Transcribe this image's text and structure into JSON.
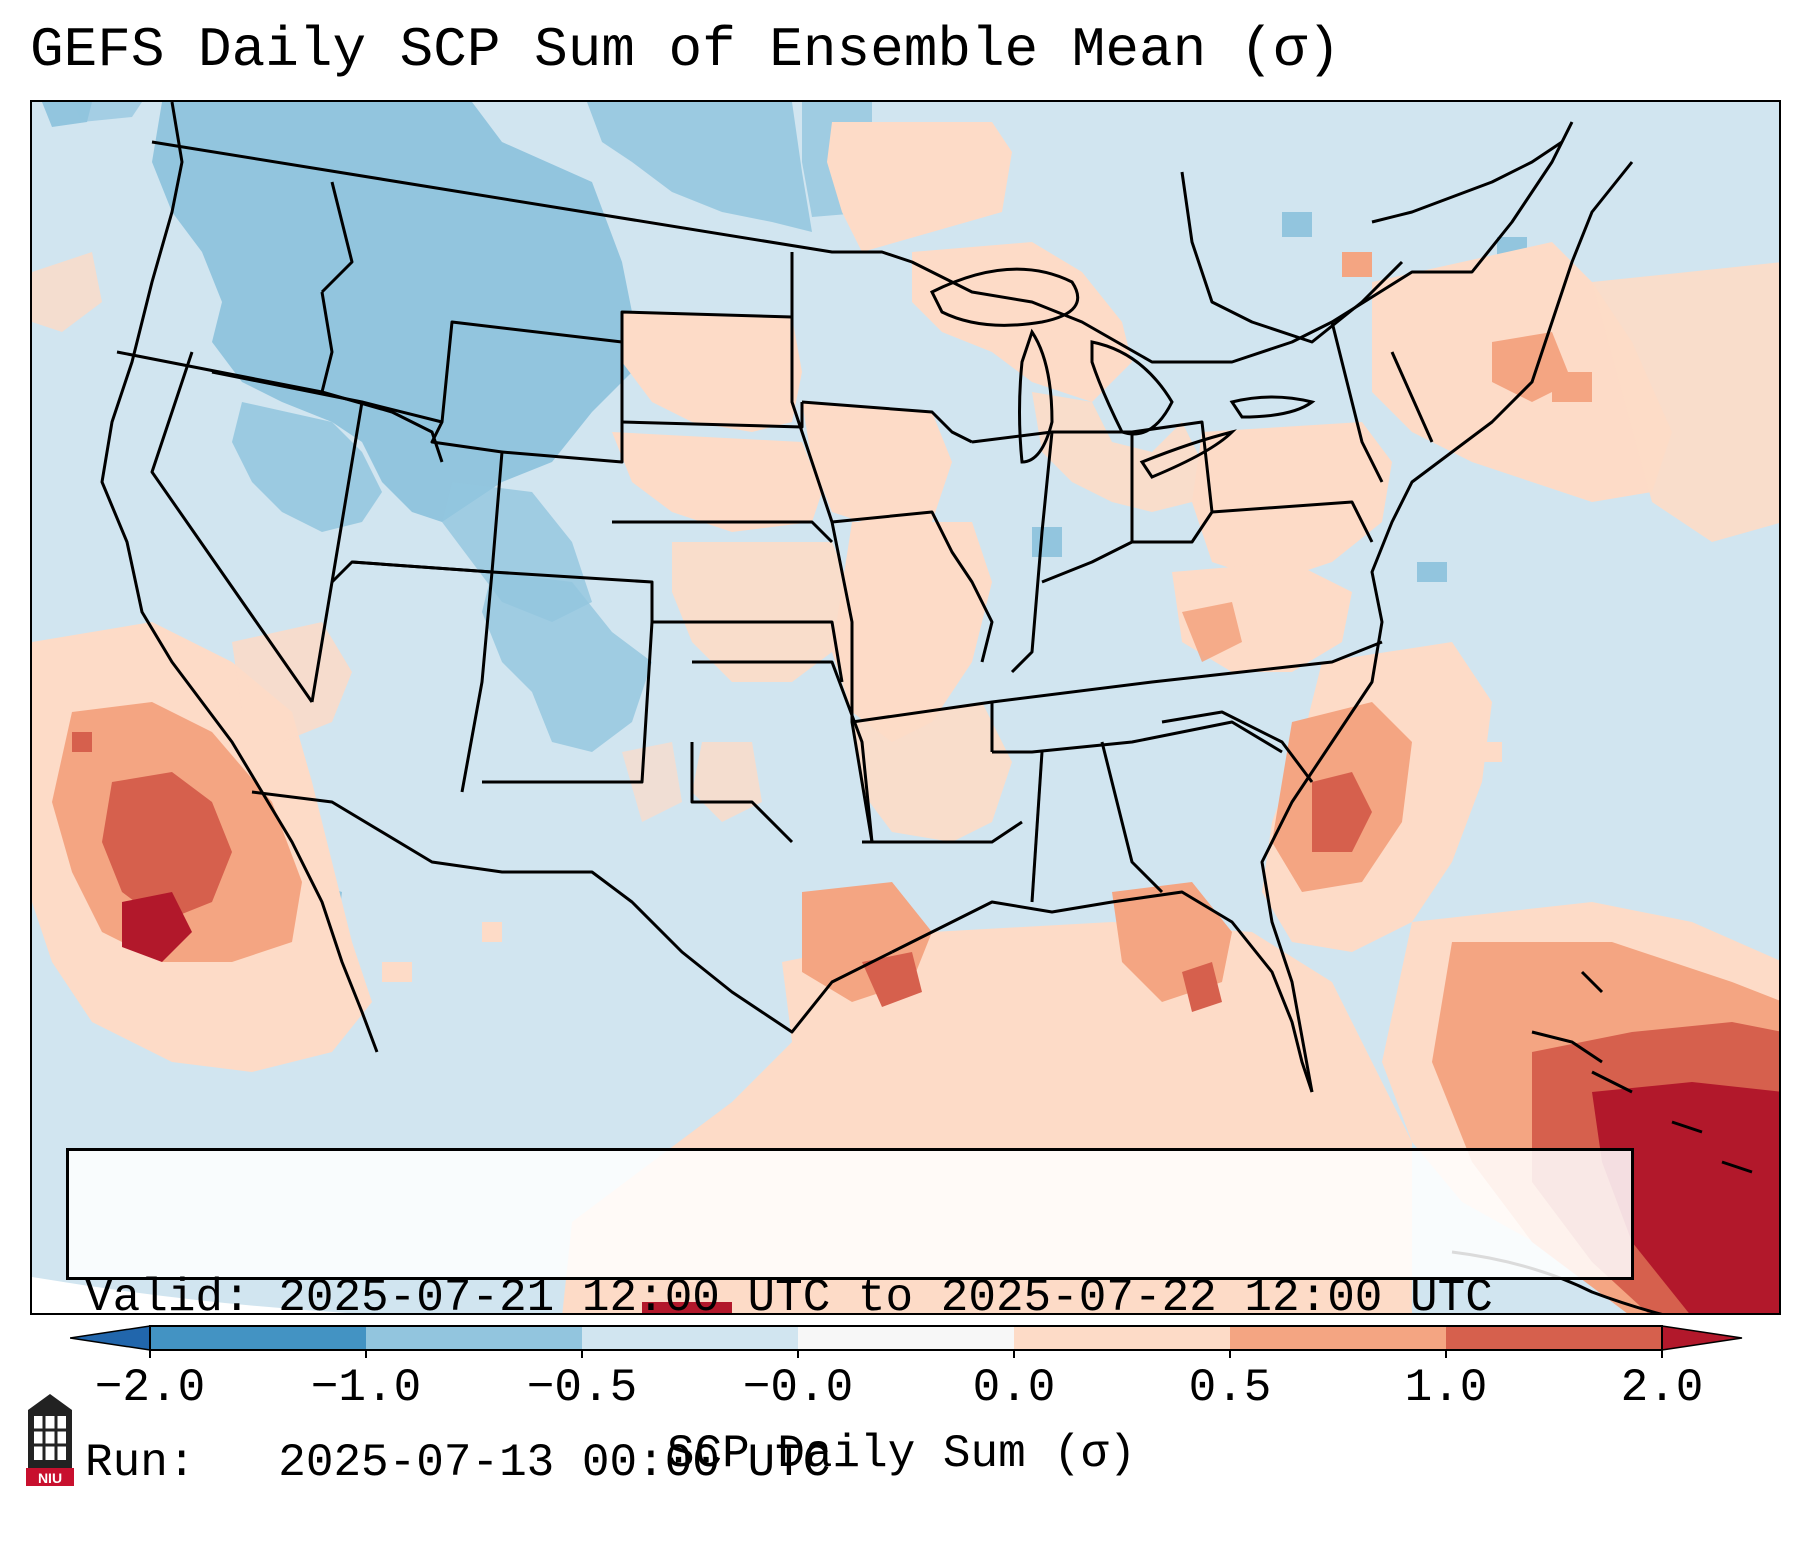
{
  "title": "GEFS Daily SCP Sum of Ensemble Mean (σ)",
  "info": {
    "valid_line": "Valid: 2025-07-21 12:00 UTC to 2025-07-22 12:00 UTC",
    "run_line": "Run:   2025-07-13 00:00 UTC"
  },
  "colorbar": {
    "label": "SCP Daily Sum (σ)",
    "ticks": [
      "−2.0",
      "−1.0",
      "−0.5",
      "−0.0",
      "0.0",
      "0.5",
      "1.0",
      "2.0"
    ],
    "bin_colors": [
      "#4393c3",
      "#92c5de",
      "#d1e5f0",
      "#f7f7f7",
      "#fddbc7",
      "#f4a582",
      "#d6604d"
    ],
    "under_color": "#2166ac",
    "over_color": "#b2182b"
  },
  "map": {
    "background_color": "#d1e5f0",
    "offdomain_color": "#ffffff",
    "border_color": "#000000"
  },
  "logo": {
    "text": "NIU"
  }
}
